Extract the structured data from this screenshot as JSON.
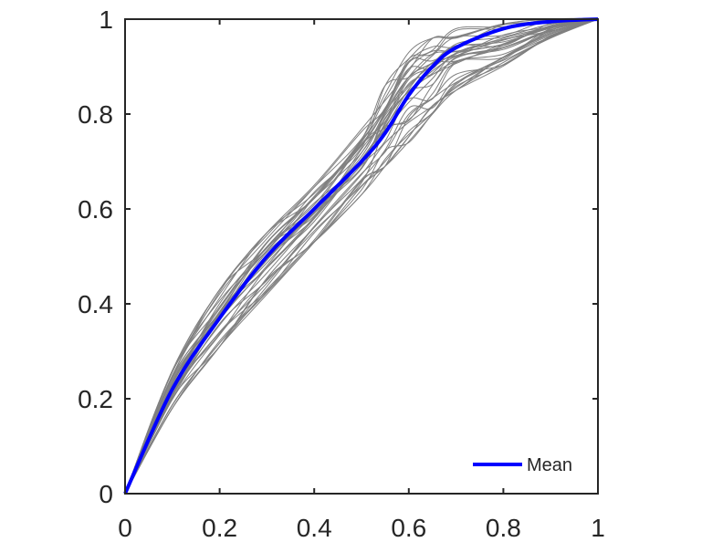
{
  "chart_data": {
    "type": "line",
    "title": "",
    "xlabel": "",
    "ylabel": "",
    "xlim": [
      0,
      1
    ],
    "ylim": [
      0,
      1
    ],
    "x_ticks": [
      "0",
      "0.2",
      "0.4",
      "0.6",
      "0.8",
      "1"
    ],
    "y_ticks": [
      "0",
      "0.2",
      "0.4",
      "0.6",
      "0.8",
      "1"
    ],
    "grid": false,
    "legend": {
      "position": "bottom-right",
      "entries": [
        "Mean"
      ]
    },
    "x": [
      0,
      0.1,
      0.2,
      0.3,
      0.4,
      0.5,
      0.55,
      0.6,
      0.65,
      0.7,
      0.8,
      0.9,
      1.0
    ],
    "series": [
      {
        "name": "Mean",
        "color": "#0000ff",
        "values": [
          0,
          0.22,
          0.37,
          0.5,
          0.6,
          0.7,
          0.76,
          0.84,
          0.9,
          0.94,
          0.98,
          0.995,
          1.0
        ]
      }
    ],
    "sample_curves": {
      "color": "#808080",
      "count": 36,
      "upper_envelope": [
        0,
        0.26,
        0.43,
        0.55,
        0.65,
        0.77,
        0.86,
        0.93,
        0.96,
        0.98,
        0.99,
        1.0,
        1.0
      ],
      "lower_envelope": [
        0,
        0.18,
        0.31,
        0.42,
        0.53,
        0.63,
        0.69,
        0.74,
        0.8,
        0.85,
        0.9,
        0.96,
        1.0
      ]
    }
  }
}
